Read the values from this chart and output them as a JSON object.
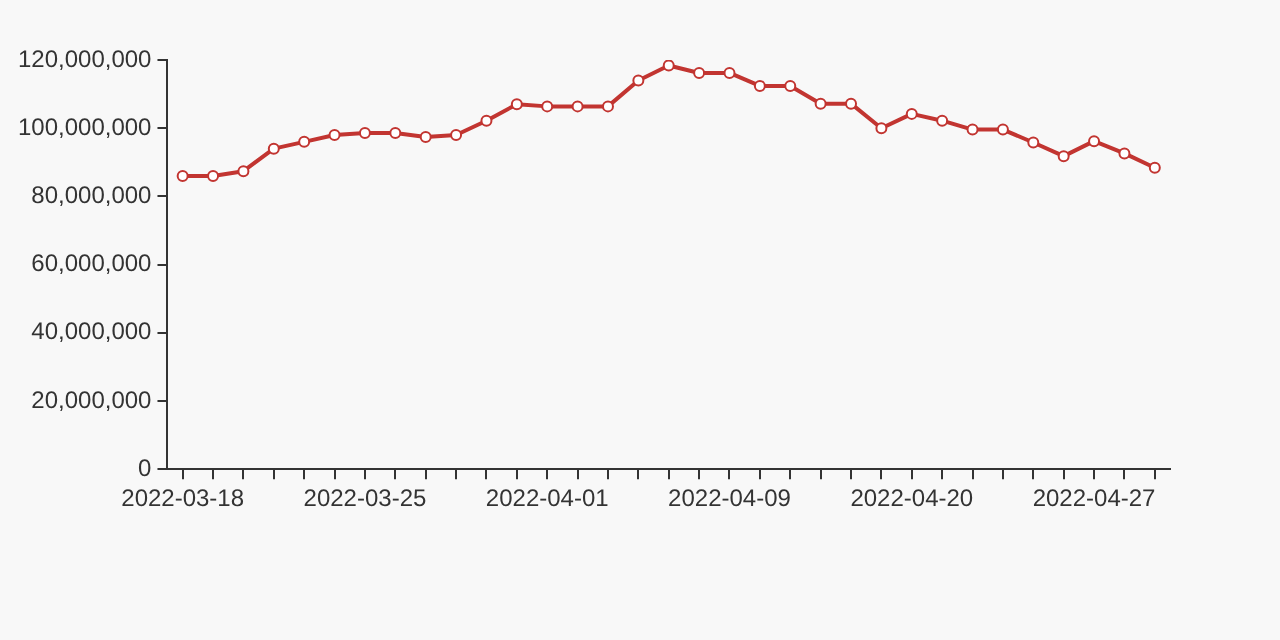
{
  "chart_data": {
    "type": "line",
    "categories": [
      "2022-03-18",
      null,
      null,
      null,
      null,
      null,
      "2022-03-25",
      null,
      null,
      null,
      null,
      null,
      "2022-04-01",
      null,
      null,
      null,
      null,
      null,
      "2022-04-09",
      null,
      null,
      null,
      null,
      null,
      "2022-04-20",
      null,
      null,
      null,
      null,
      null,
      "2022-04-27",
      null,
      null
    ],
    "series": [
      {
        "color": "#c23531",
        "values": [
          86000000,
          86000000,
          87400000,
          94000000,
          96000000,
          98000000,
          98600000,
          98600000,
          97400000,
          98000000,
          102200000,
          107000000,
          106400000,
          106400000,
          106400000,
          114000000,
          118400000,
          116200000,
          116200000,
          112400000,
          112400000,
          107200000,
          107200000,
          100000000,
          104200000,
          102200000,
          99600000,
          99600000,
          95800000,
          91800000,
          96200000,
          92600000,
          88400000
        ]
      }
    ],
    "ylim": [
      0,
      120000000
    ],
    "yticks": [
      0,
      {
        "value": 20000000,
        "label": "20,000,000"
      },
      {
        "value": 40000000,
        "label": "40,000,000"
      },
      {
        "value": 60000000,
        "label": "60,000,000"
      },
      {
        "value": 80000000,
        "label": "80,000,000"
      },
      {
        "value": 100000000,
        "label": "100,000,000"
      },
      {
        "value": 120000000,
        "label": "120,000,000"
      }
    ],
    "grid": false,
    "legend": false,
    "marker": "circle",
    "line_style": "solid"
  }
}
